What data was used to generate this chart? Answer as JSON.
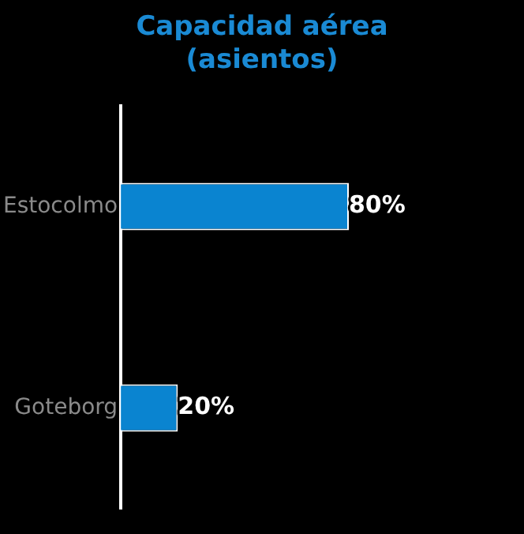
{
  "chart_data": {
    "type": "bar",
    "title": "Capacidad aérea (asientos)",
    "orientation": "horizontal",
    "categories": [
      "Estocolmo",
      "Goteborg"
    ],
    "values": [
      80,
      20
    ],
    "value_labels": [
      "80%",
      "20%"
    ],
    "color": "#0a84d0",
    "tick_labels": "y",
    "legend": false
  }
}
